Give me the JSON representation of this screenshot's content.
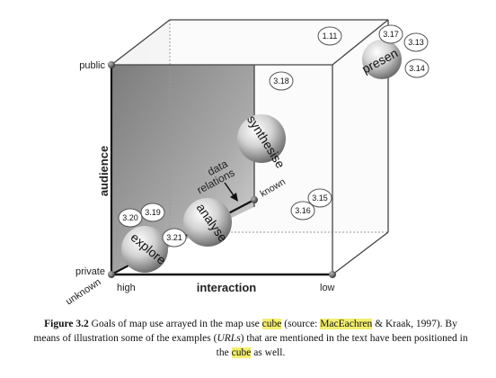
{
  "axes": {
    "audience": "audience",
    "public": "public",
    "private": "private",
    "unknown": "unknown",
    "interaction": "interaction",
    "high": "high",
    "low": "low",
    "known": "known"
  },
  "spheres": {
    "explore": "explore",
    "analyse": "analyse",
    "synthesise": "synthesise",
    "present": "presen"
  },
  "annotation": {
    "line1": "data",
    "line2": "relations"
  },
  "badges": {
    "b1_11": "1.11",
    "b3_17": "3.17",
    "b3_13": "3.13",
    "b3_14": "3.14",
    "b3_18": "3.18",
    "b3_15": "3.15",
    "b3_16": "3.16",
    "b3_19": "3.19",
    "b3_20": "3.20",
    "b3_21": "3.21"
  },
  "caption": {
    "label": "Figure 3.2",
    "t1": " Goals of map use arrayed in the map use ",
    "hl1": "cube",
    "t2": " (source: ",
    "hl2": "MacEachren",
    "t3": " & Kraak, 1997). By means of illustration some of the examples (",
    "em": "URLs",
    "t4": ") that are mentioned in the text have been positioned in the ",
    "hl3": "cube",
    "t5": " as well."
  },
  "colors": {
    "highlight": "#f4ee6f",
    "shaded_face": "#8a8a8a",
    "interaction_label": "#7a7400"
  }
}
